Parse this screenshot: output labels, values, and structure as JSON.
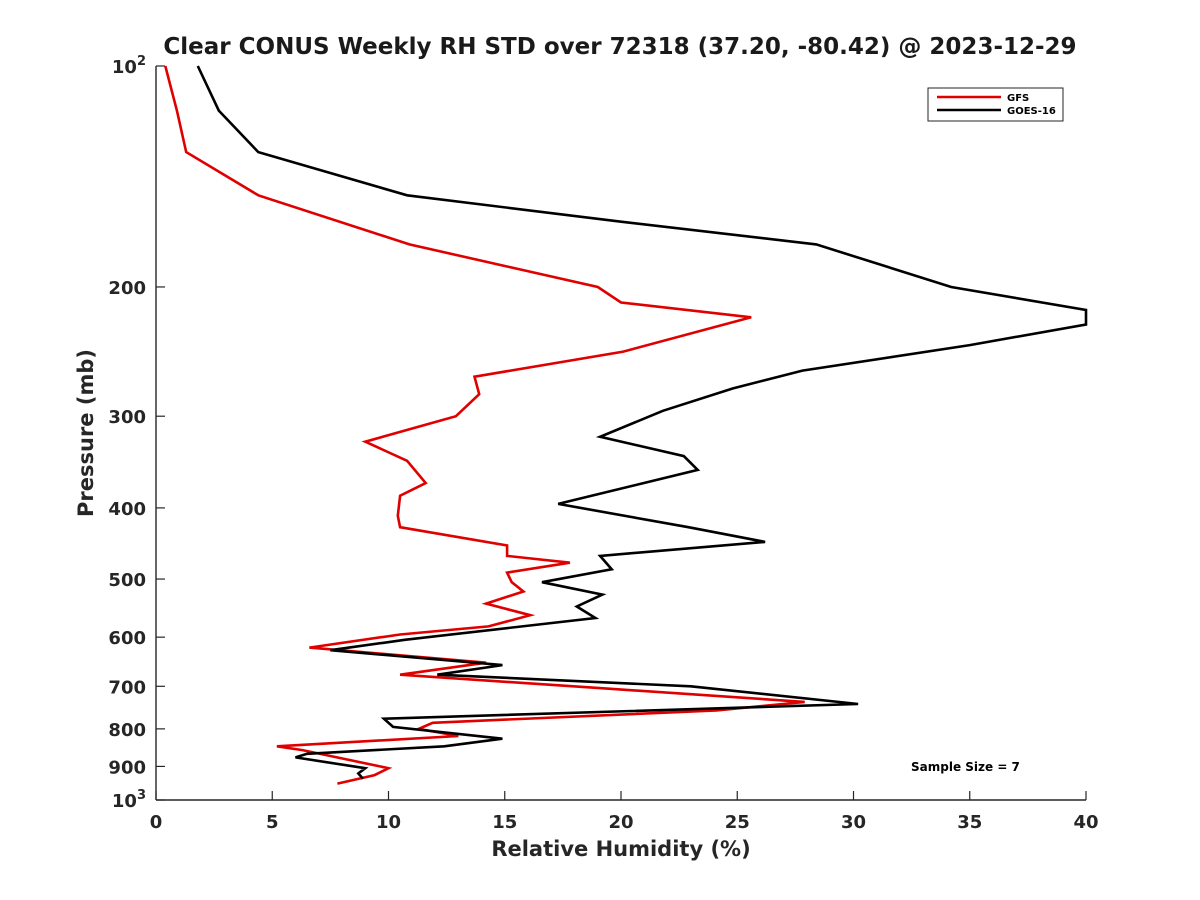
{
  "chart_data": {
    "type": "line",
    "title": "Clear CONUS Weekly RH STD over 72318 (37.20, -80.42) @ 2023-12-29",
    "xlabel": "Relative Humidity (%)",
    "ylabel": "Pressure (mb)",
    "xlim": [
      0,
      40
    ],
    "ylim": [
      100,
      1000
    ],
    "y_scale": "log",
    "y_reversed": true,
    "grid": false,
    "legend_position": "top-right",
    "x_ticks": [
      0,
      5,
      10,
      15,
      20,
      25,
      30,
      35,
      40
    ],
    "y_ticks": [
      {
        "value": 100,
        "base": "10",
        "exp": "2"
      },
      {
        "value": 200,
        "label": "200"
      },
      {
        "value": 300,
        "label": "300"
      },
      {
        "value": 400,
        "label": "400"
      },
      {
        "value": 500,
        "label": "500"
      },
      {
        "value": 600,
        "label": "600"
      },
      {
        "value": 700,
        "label": "700"
      },
      {
        "value": 800,
        "label": "800"
      },
      {
        "value": 900,
        "label": "900"
      },
      {
        "value": 1000,
        "base": "10",
        "exp": "3"
      }
    ],
    "annotation": "Sample Size = 7",
    "series": [
      {
        "name": "GFS",
        "color": "#e00000",
        "points": [
          [
            0.4,
            100
          ],
          [
            0.9,
            115
          ],
          [
            1.3,
            131
          ],
          [
            4.4,
            150
          ],
          [
            10.9,
            175
          ],
          [
            19.0,
            200
          ],
          [
            20.0,
            210
          ],
          [
            25.6,
            220
          ],
          [
            20.1,
            245
          ],
          [
            13.7,
            265
          ],
          [
            13.9,
            280
          ],
          [
            12.9,
            300
          ],
          [
            9.0,
            325
          ],
          [
            10.8,
            345
          ],
          [
            11.6,
            370
          ],
          [
            10.5,
            385
          ],
          [
            10.4,
            410
          ],
          [
            10.5,
            425
          ],
          [
            15.1,
            450
          ],
          [
            15.1,
            465
          ],
          [
            17.8,
            475
          ],
          [
            15.1,
            490
          ],
          [
            15.3,
            505
          ],
          [
            15.8,
            520
          ],
          [
            14.2,
            540
          ],
          [
            16.1,
            560
          ],
          [
            14.3,
            580
          ],
          [
            10.5,
            595
          ],
          [
            6.6,
            620
          ],
          [
            14.2,
            650
          ],
          [
            10.5,
            675
          ],
          [
            19.4,
            705
          ],
          [
            27.9,
            735
          ],
          [
            24.1,
            755
          ],
          [
            11.9,
            785
          ],
          [
            11.3,
            800
          ],
          [
            13.0,
            818
          ],
          [
            5.2,
            845
          ],
          [
            6.3,
            855
          ],
          [
            10.0,
            905
          ],
          [
            9.4,
            925
          ],
          [
            7.8,
            950
          ]
        ]
      },
      {
        "name": "GOES-16",
        "color": "#000000",
        "points": [
          [
            1.8,
            100
          ],
          [
            2.7,
            115
          ],
          [
            4.4,
            131
          ],
          [
            10.8,
            150
          ],
          [
            20.0,
            163
          ],
          [
            28.4,
            175
          ],
          [
            34.2,
            200
          ],
          [
            40.0,
            215
          ],
          [
            40.0,
            225
          ],
          [
            35.0,
            240
          ],
          [
            27.8,
            260
          ],
          [
            24.8,
            275
          ],
          [
            21.8,
            295
          ],
          [
            19.1,
            320
          ],
          [
            22.7,
            340
          ],
          [
            23.3,
            355
          ],
          [
            17.3,
            395
          ],
          [
            22.9,
            425
          ],
          [
            26.2,
            445
          ],
          [
            19.1,
            465
          ],
          [
            19.6,
            485
          ],
          [
            16.6,
            505
          ],
          [
            19.2,
            525
          ],
          [
            18.1,
            545
          ],
          [
            18.9,
            565
          ],
          [
            10.7,
            605
          ],
          [
            7.5,
            625
          ],
          [
            14.9,
            655
          ],
          [
            12.1,
            675
          ],
          [
            23.0,
            700
          ],
          [
            30.2,
            740
          ],
          [
            9.8,
            775
          ],
          [
            10.2,
            795
          ],
          [
            14.9,
            825
          ],
          [
            12.4,
            845
          ],
          [
            6.5,
            865
          ],
          [
            6.0,
            875
          ],
          [
            9.0,
            905
          ],
          [
            8.7,
            920
          ],
          [
            8.9,
            935
          ]
        ]
      }
    ]
  }
}
